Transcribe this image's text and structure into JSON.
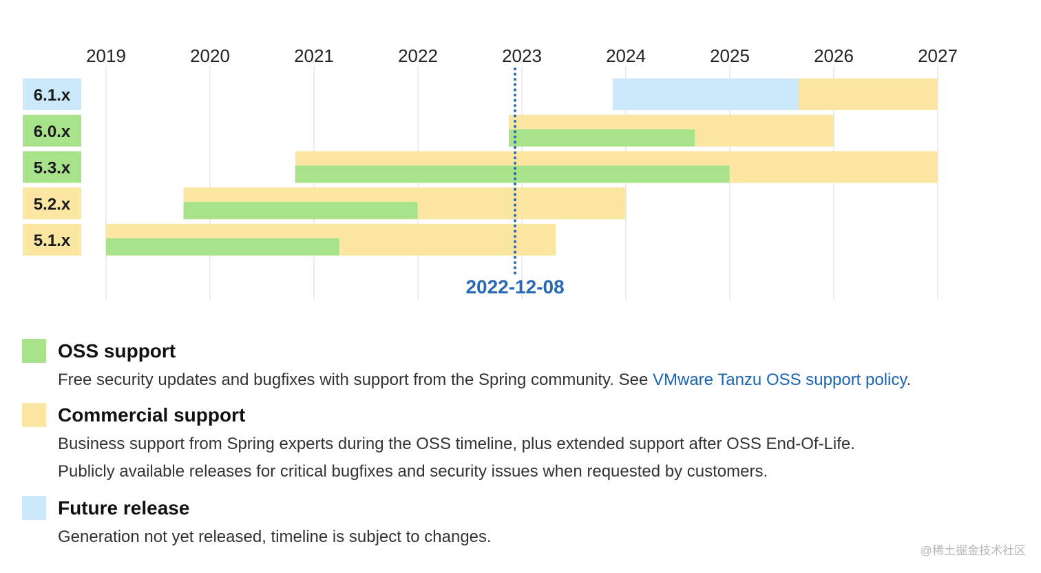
{
  "chart_data": {
    "type": "timeline",
    "x_ticks": [
      "2019",
      "2020",
      "2021",
      "2022",
      "2023",
      "2024",
      "2025",
      "2026",
      "2027"
    ],
    "xlim": [
      "2019-01-01",
      "2027-01-01"
    ],
    "marker": {
      "date": "2022-12-08",
      "label": "2022-12-08"
    },
    "series": [
      {
        "name": "OSS support",
        "color": "#a8e38c"
      },
      {
        "name": "Commercial support",
        "color": "#fbe6a2"
      },
      {
        "name": "Future release",
        "color": "#cbe9fb"
      }
    ],
    "rows": [
      {
        "label": "6.1.x",
        "label_color": "#cbe9fb",
        "future_start": "2023-11-16",
        "future_end": "2025-08-31",
        "commercial_start": "2025-08-31",
        "commercial_end": "2026-12-31"
      },
      {
        "label": "6.0.x",
        "label_color": "#a8e38c",
        "oss_start": "2022-11-16",
        "oss_end": "2024-08-31",
        "commercial_start": "2022-11-16",
        "commercial_end": "2025-12-31"
      },
      {
        "label": "5.3.x",
        "label_color": "#a8e38c",
        "oss_start": "2020-10-27",
        "oss_end": "2024-12-31",
        "commercial_start": "2020-10-27",
        "commercial_end": "2026-12-31"
      },
      {
        "label": "5.2.x",
        "label_color": "#fbe6a2",
        "oss_start": "2019-09-30",
        "oss_end": "2021-12-31",
        "commercial_start": "2019-09-30",
        "commercial_end": "2023-12-31"
      },
      {
        "label": "5.1.x",
        "label_color": "#fbe6a2",
        "oss_start": "2019-01-01",
        "oss_end": "2021-03-31",
        "commercial_start": "2019-01-01",
        "commercial_end": "2023-04-30"
      }
    ]
  },
  "legend": {
    "oss": {
      "title": "OSS support",
      "desc_prefix": "Free security updates and bugfixes with support from the Spring community. See ",
      "link_text": "VMware Tanzu OSS support policy",
      "desc_suffix": ".",
      "color": "#a8e38c"
    },
    "commercial": {
      "title": "Commercial support",
      "desc_line1": "Business support from Spring experts during the OSS timeline, plus extended support after OSS End-Of-Life.",
      "desc_line2": "Publicly available releases for critical bugfixes and security issues when requested by customers.",
      "color": "#fbe6a2"
    },
    "future": {
      "title": "Future release",
      "desc": "Generation not yet released, timeline is subject to changes.",
      "color": "#cbe9fb"
    }
  },
  "watermark": "@稀土掘金技术社区"
}
